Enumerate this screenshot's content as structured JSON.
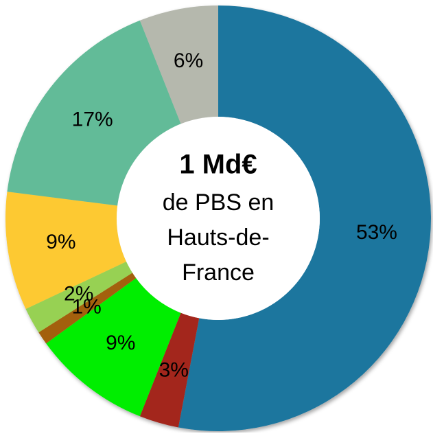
{
  "chart_data": {
    "type": "donut",
    "values": [
      53,
      3,
      9,
      1,
      2,
      9,
      17,
      6
    ],
    "value_labels": [
      "53%",
      "3%",
      "9%",
      "1%",
      "2%",
      "9%",
      "17%",
      "6%"
    ],
    "colors": [
      "#1e769e",
      "#a3281f",
      "#00ee00",
      "#a3600c",
      "#97d152",
      "#fdc930",
      "#62bb98",
      "#b5b8ad"
    ],
    "center_lines": [
      "1 Md€",
      "de PBS en",
      "Hauts-de-",
      "France"
    ]
  }
}
